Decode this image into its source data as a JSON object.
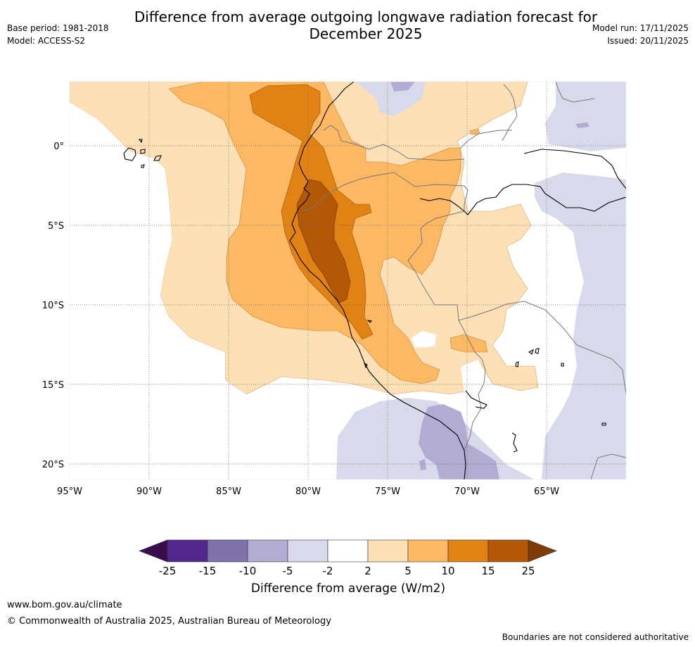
{
  "header": {
    "title_line1": "Difference from average outgoing longwave radiation forecast for",
    "title_line2": "December 2025",
    "base_period": "Base period: 1981-2018",
    "model": "Model: ACCESS-S2",
    "model_run": "Model run: 17/11/2025",
    "issued": "Issued: 20/11/2025"
  },
  "map": {
    "longitude_ticks": [
      "95°W",
      "90°W",
      "85°W",
      "80°W",
      "75°W",
      "70°W",
      "65°W"
    ],
    "latitude_ticks": [
      "0°",
      "5°S",
      "10°S",
      "15°S",
      "20°S"
    ]
  },
  "colorbar": {
    "title": "Difference from average (W/m2)",
    "tick_labels": [
      "-25",
      "-15",
      "-10",
      "-5",
      "-2",
      "2",
      "5",
      "10",
      "15",
      "25"
    ],
    "colors": [
      "#3a0c4f",
      "#54278f",
      "#8073ac",
      "#b2abd2",
      "#d8daeb",
      "#ffffff",
      "#fee0b6",
      "#fdb863",
      "#e08214",
      "#b35806",
      "#7f3b08"
    ]
  },
  "footer": {
    "link": "www.bom.gov.au/climate",
    "copyright": "© Commonwealth of Australia 2025, Australian Bureau of Meteorology",
    "note": "Boundaries are not considered authoritative"
  }
}
